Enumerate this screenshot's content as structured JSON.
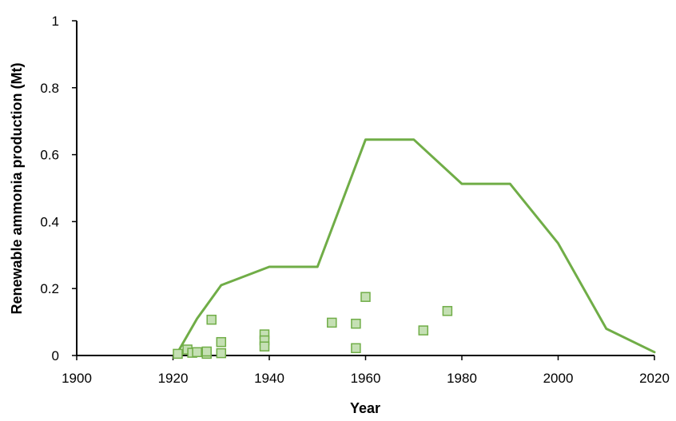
{
  "chart_data": {
    "type": "line",
    "title": "",
    "xlabel": "Year",
    "ylabel": "Renewable ammonia production (Mt)",
    "xlim": [
      1900,
      2020
    ],
    "ylim": [
      0,
      1
    ],
    "x_ticks": [
      "1900",
      "1920",
      "1940",
      "1960",
      "1980",
      "2000",
      "2020"
    ],
    "y_ticks": [
      "0",
      "0.2",
      "0.4",
      "0.6",
      "0.8",
      "1"
    ],
    "grid": false,
    "legend": "none",
    "series": [
      {
        "kind": "line",
        "color": "#70ad47",
        "x": [
          1921,
          1925,
          1930,
          1940,
          1950,
          1960,
          1970,
          1980,
          1990,
          2000,
          2010,
          2020
        ],
        "y": [
          0.01,
          0.11,
          0.21,
          0.265,
          0.265,
          0.645,
          0.645,
          0.513,
          0.513,
          0.335,
          0.08,
          0.01
        ]
      },
      {
        "kind": "scatter",
        "color": "#70ad47",
        "fill": "#c5e0b4",
        "x": [
          1921,
          1923,
          1924,
          1925,
          1927,
          1927,
          1928,
          1930,
          1930,
          1939,
          1939,
          1939,
          1953,
          1958,
          1958,
          1960,
          1972,
          1977
        ],
        "y": [
          0.005,
          0.018,
          0.008,
          0.01,
          0.005,
          0.012,
          0.107,
          0.007,
          0.04,
          0.063,
          0.045,
          0.027,
          0.098,
          0.095,
          0.022,
          0.175,
          0.075,
          0.133
        ]
      }
    ]
  }
}
